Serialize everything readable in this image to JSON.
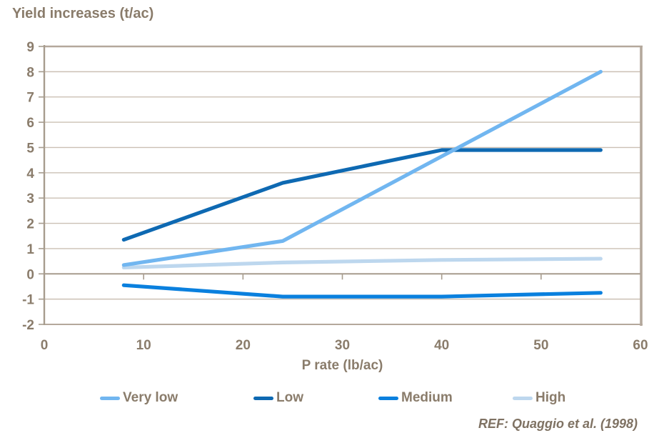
{
  "chart_data": {
    "type": "line",
    "title": "Yield increases (t/ac)",
    "xlabel": "P rate (lb/ac)",
    "ylabel": "Yield increases (t/ac)",
    "annotation": "REF: Quaggio et al. (1998)",
    "xlim": [
      0,
      60
    ],
    "ylim": [
      -2,
      9
    ],
    "xticks": [
      0,
      10,
      20,
      30,
      40,
      50,
      60
    ],
    "yticks": [
      9,
      8,
      7,
      6,
      5,
      4,
      3,
      2,
      1,
      0,
      -1,
      -2
    ],
    "grid": "horizontal",
    "legend_position": "bottom",
    "series": [
      {
        "name": "Very low",
        "color": "#71b6f0",
        "x": [
          8,
          24,
          56
        ],
        "y": [
          0.35,
          1.3,
          8.0
        ]
      },
      {
        "name": "Low",
        "color": "#0e69b2",
        "x": [
          8,
          24,
          40,
          56
        ],
        "y": [
          1.35,
          3.6,
          4.9,
          4.9
        ]
      },
      {
        "name": "Medium",
        "color": "#0a80de",
        "x": [
          8,
          24,
          40,
          56
        ],
        "y": [
          -0.45,
          -0.9,
          -0.9,
          -0.75
        ]
      },
      {
        "name": "High",
        "color": "#bdd7ee",
        "x": [
          8,
          24,
          40,
          56
        ],
        "y": [
          0.25,
          0.45,
          0.55,
          0.6
        ]
      }
    ]
  },
  "colors": {
    "text": "#8a7c6b",
    "grid": "#cbc0b4",
    "axis": "#a79c8e",
    "border": "#b4a89c",
    "background": "#ffffff"
  }
}
